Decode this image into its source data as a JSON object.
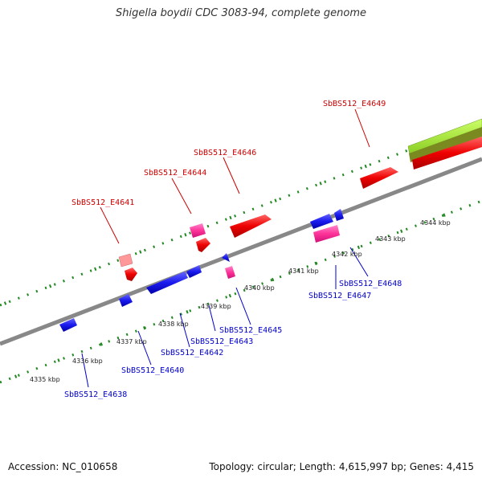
{
  "title": "Shigella boydii CDC 3083-94, complete genome",
  "footer": {
    "accession": "Accession: NC_010658",
    "stats": "Topology: circular; Length: 4,615,997 bp; Genes: 4,415"
  },
  "colors": {
    "forward_gene_label": "#cc0000",
    "reverse_gene_label": "#0000cc",
    "forward_cds": "#ee0000",
    "forward_rna": "#ff3399",
    "reverse_cds": "#1a1aee",
    "ruler": "#228822",
    "backbone": "#888888",
    "feature_green": "#99dd33"
  },
  "kbp_labels": [
    "4335 kbp",
    "4336 kbp",
    "4337 kbp",
    "4338 kbp",
    "4339 kbp",
    "4340 kbp",
    "4341 kbp",
    "4342 kbp",
    "4343 kbp",
    "4344 kbp"
  ],
  "forward_labels": [
    "SbBS512_E4641",
    "SbBS512_E4644",
    "SbBS512_E4646",
    "SbBS512_E4649"
  ],
  "reverse_labels": [
    "SbBS512_E4638",
    "SbBS512_E4640",
    "SbBS512_E4642",
    "SbBS512_E4643",
    "SbBS512_E4645",
    "SbBS512_E4647",
    "SbBS512_E4648"
  ]
}
